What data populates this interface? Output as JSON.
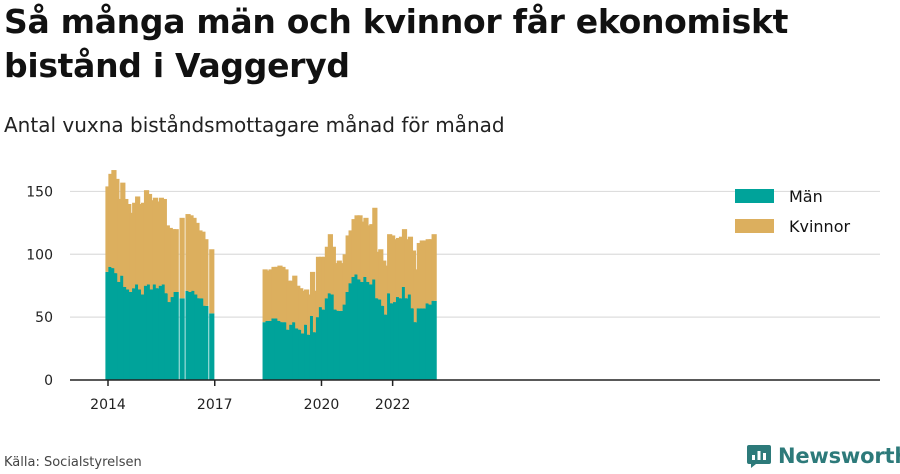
{
  "header": {
    "title": "Så många män och kvinnor får ekonomiskt bistånd i Vaggeryd",
    "subtitle": "Antal vuxna biståndsmottagare månad för månad"
  },
  "footer": {
    "source": "Källa: Socialstyrelsen",
    "brand": "Newsworthy",
    "brand_icon": "newsworthy-logo-icon"
  },
  "colors": {
    "men": "#00a39a",
    "women": "#dcaf5e",
    "grid": "#dddddd",
    "axis": "#222222",
    "brand": "#2d7a7a"
  },
  "chart_data": {
    "type": "bar",
    "stacked": true,
    "x_unit": "month",
    "x_start": "2014-01",
    "x_ticks": [
      "2014",
      "2017",
      "2020",
      "2022"
    ],
    "y_ticks": [
      0,
      50,
      100,
      150
    ],
    "ylim": [
      0,
      175
    ],
    "grid": true,
    "legend_position": "top-right",
    "series": [
      {
        "name": "Män",
        "values": [
          86,
          90,
          89,
          85,
          78,
          83,
          74,
          72,
          70,
          73,
          76,
          72,
          68,
          75,
          76,
          72,
          76,
          73,
          75,
          76,
          69,
          62,
          66,
          70,
          null,
          65,
          null,
          71,
          70,
          71,
          68,
          65,
          65,
          59,
          null,
          53,
          null,
          null,
          null,
          null,
          null,
          null,
          null,
          null,
          null,
          null,
          null,
          null,
          null,
          null,
          null,
          null,
          null,
          46,
          47,
          47,
          49,
          49,
          47,
          46,
          46,
          40,
          44,
          46,
          41,
          40,
          37,
          44,
          36,
          51,
          38,
          50,
          58,
          56,
          65,
          69,
          68,
          56,
          55,
          55,
          60,
          70,
          77,
          82,
          84,
          80,
          78,
          82,
          78,
          76,
          80,
          65,
          64,
          59,
          52,
          69,
          61,
          62,
          66,
          65,
          74,
          65,
          68,
          57,
          46,
          57,
          57,
          57,
          61,
          60,
          63
        ]
      },
      {
        "name": "Kvinnor",
        "values": [
          68,
          74,
          78,
          75,
          66,
          74,
          70,
          68,
          63,
          68,
          70,
          68,
          73,
          76,
          72,
          71,
          69,
          69,
          70,
          68,
          54,
          59,
          54,
          50,
          null,
          64,
          null,
          61,
          61,
          58,
          57,
          54,
          53,
          53,
          null,
          51,
          null,
          null,
          null,
          null,
          null,
          null,
          null,
          null,
          null,
          null,
          null,
          null,
          null,
          null,
          null,
          null,
          null,
          42,
          40,
          41,
          41,
          41,
          44,
          44,
          42,
          39,
          35,
          37,
          34,
          33,
          34,
          28,
          32,
          35,
          33,
          48,
          40,
          42,
          41,
          47,
          38,
          37,
          40,
          38,
          40,
          45,
          42,
          46,
          47,
          51,
          48,
          47,
          45,
          48,
          57,
          37,
          40,
          36,
          39,
          47,
          54,
          50,
          47,
          49,
          46,
          47,
          46,
          46,
          42,
          52,
          54,
          54,
          51,
          52,
          53
        ]
      }
    ]
  }
}
